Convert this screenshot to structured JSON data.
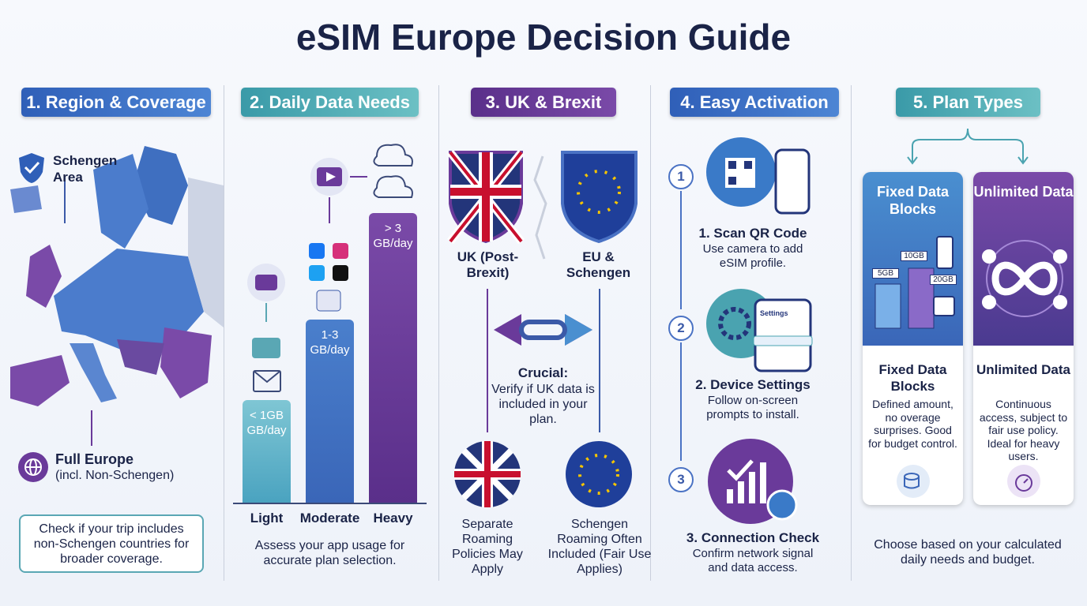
{
  "title": "eSIM Europe Decision Guide",
  "sections": [
    {
      "heading": "1. Region & Coverage",
      "schengen_label": "Schengen Area",
      "full_europe": "Full Europe",
      "full_europe_note": "(incl. Non-Schengen)",
      "tip": "Check if your trip includes non-Schengen countries for broader coverage."
    },
    {
      "heading": "2. Daily Data Needs",
      "bars": [
        {
          "label": "< 1GB GB/day",
          "category": "Light"
        },
        {
          "label": "1-3 GB/day",
          "category": "Moderate"
        },
        {
          "label": "> 3 GB/day",
          "category": "Heavy"
        }
      ],
      "note": "Assess your app usage for accurate plan selection."
    },
    {
      "heading": "3. UK & Brexit",
      "uk": "UK (Post-Brexit)",
      "eu": "EU & Schengen",
      "crucial_title": "Crucial:",
      "crucial_text": "Verify if UK data is included in your plan.",
      "uk_policy": "Separate Roaming Policies May Apply",
      "eu_policy": "Schengen Roaming Often Included (Fair Use Applies)"
    },
    {
      "heading": "4. Easy Activation",
      "settings_label": "Settings",
      "steps": [
        {
          "number": "1",
          "title": "1. Scan QR Code",
          "text": "Use camera to add eSIM profile."
        },
        {
          "number": "2",
          "title": "2. Device Settings",
          "text": "Follow on-screen prompts to install."
        },
        {
          "number": "3",
          "title": "3. Connection Check",
          "text": "Confirm network signal and data access."
        }
      ]
    },
    {
      "heading": "5. Plan Types",
      "blocks": [
        "5GB",
        "10GB",
        "20GB"
      ],
      "cards": [
        {
          "header": "Fixed Data Blocks",
          "title": "Fixed Data Blocks",
          "text": "Defined amount, no overage surprises. Good for budget control."
        },
        {
          "header": "Unlimited Data",
          "title": "Unlimited Data",
          "text": "Continuous access, subject to fair use policy. Ideal for heavy users."
        }
      ],
      "note": "Choose based on your calculated daily needs and budget."
    }
  ]
}
